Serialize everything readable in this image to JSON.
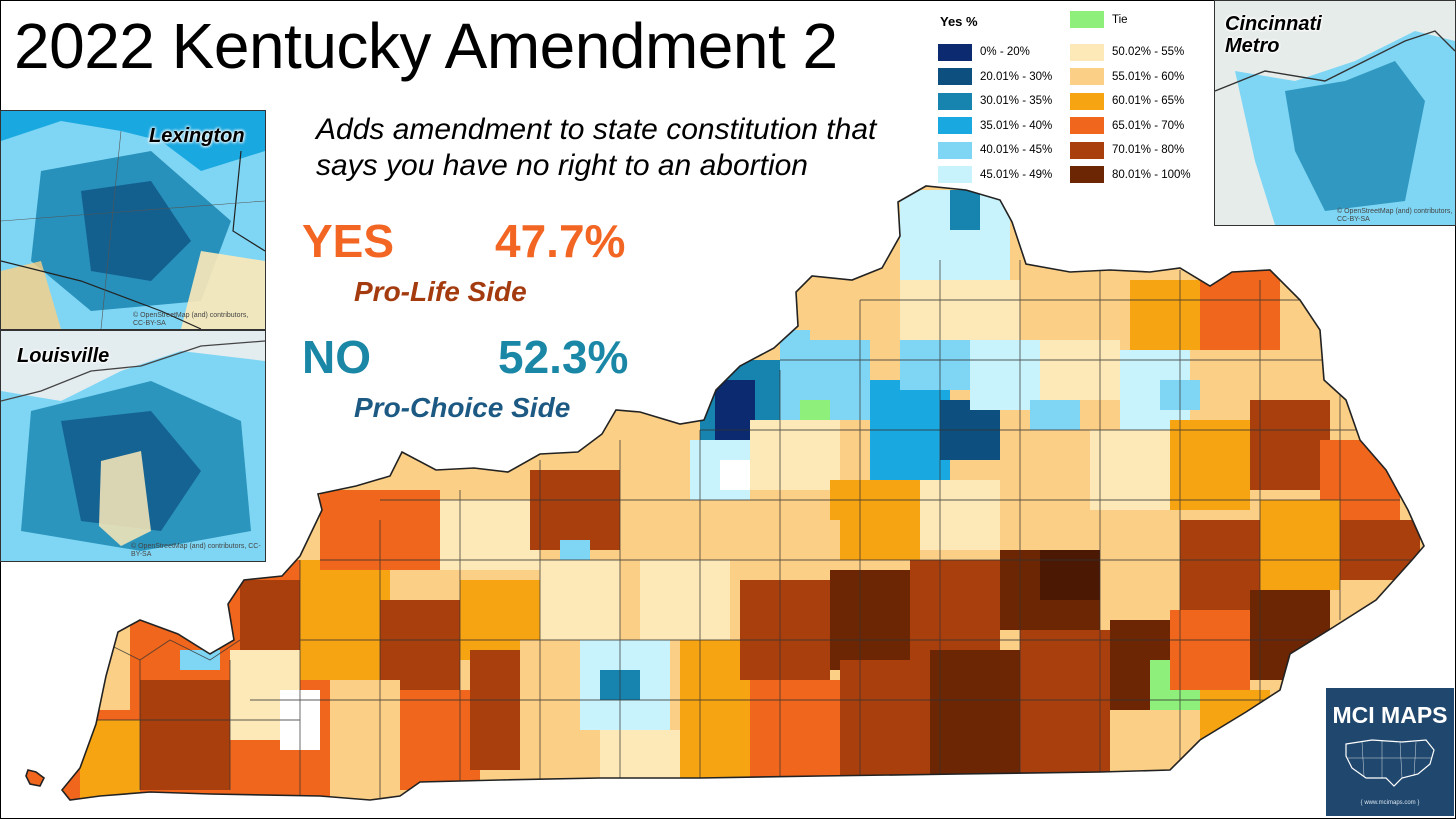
{
  "title": "2022 Kentucky Amendment 2",
  "subtitle": "Adds amendment to state constitution that says you have no right to an abortion",
  "results": {
    "yes": {
      "label": "YES",
      "percent": "47.7%",
      "side": "Pro-Life Side",
      "color": "#f26522"
    },
    "no": {
      "label": "NO",
      "percent": "52.3%",
      "side": "Pro-Choice Side",
      "color": "#1b87a6"
    }
  },
  "legend": {
    "header": "Yes  %",
    "tie": {
      "label": "Tie",
      "color": "#8ef07a"
    },
    "no_side": [
      {
        "label": "0% - 20%",
        "color": "#0b2a6f"
      },
      {
        "label": "20.01% - 30%",
        "color": "#0d4f7f"
      },
      {
        "label": "30.01% - 35%",
        "color": "#1784b0"
      },
      {
        "label": "35.01% - 40%",
        "color": "#1aa8e0"
      },
      {
        "label": "40.01% - 45%",
        "color": "#7fd6f4"
      },
      {
        "label": "45.01% - 49%",
        "color": "#c8f3fc"
      }
    ],
    "yes_side": [
      {
        "label": "50.02% - 55%",
        "color": "#fde9b8"
      },
      {
        "label": "55.01% - 60%",
        "color": "#fbcf85"
      },
      {
        "label": "60.01% - 65%",
        "color": "#f6a412"
      },
      {
        "label": "65.01% - 70%",
        "color": "#f0661c"
      },
      {
        "label": "70.01% - 80%",
        "color": "#a93f0c"
      },
      {
        "label": "80.01% - 100%",
        "color": "#6d2604"
      }
    ]
  },
  "insets": {
    "lexington": {
      "title": "Lexington",
      "credit": "© OpenStreetMap (and) contributors, CC-BY-SA"
    },
    "louisville": {
      "title": "Louisville",
      "credit": "© OpenStreetMap (and) contributors, CC-BY-SA"
    },
    "cincinnati": {
      "title_line1": "Cincinnati",
      "title_line2": "Metro",
      "credit_line1": "© OpenStreetMap (and) contributors,",
      "credit_line2": "CC-BY-SA"
    }
  },
  "brand": {
    "name": "MCI MAPS",
    "url": "{ www.mcimaps.com }"
  }
}
